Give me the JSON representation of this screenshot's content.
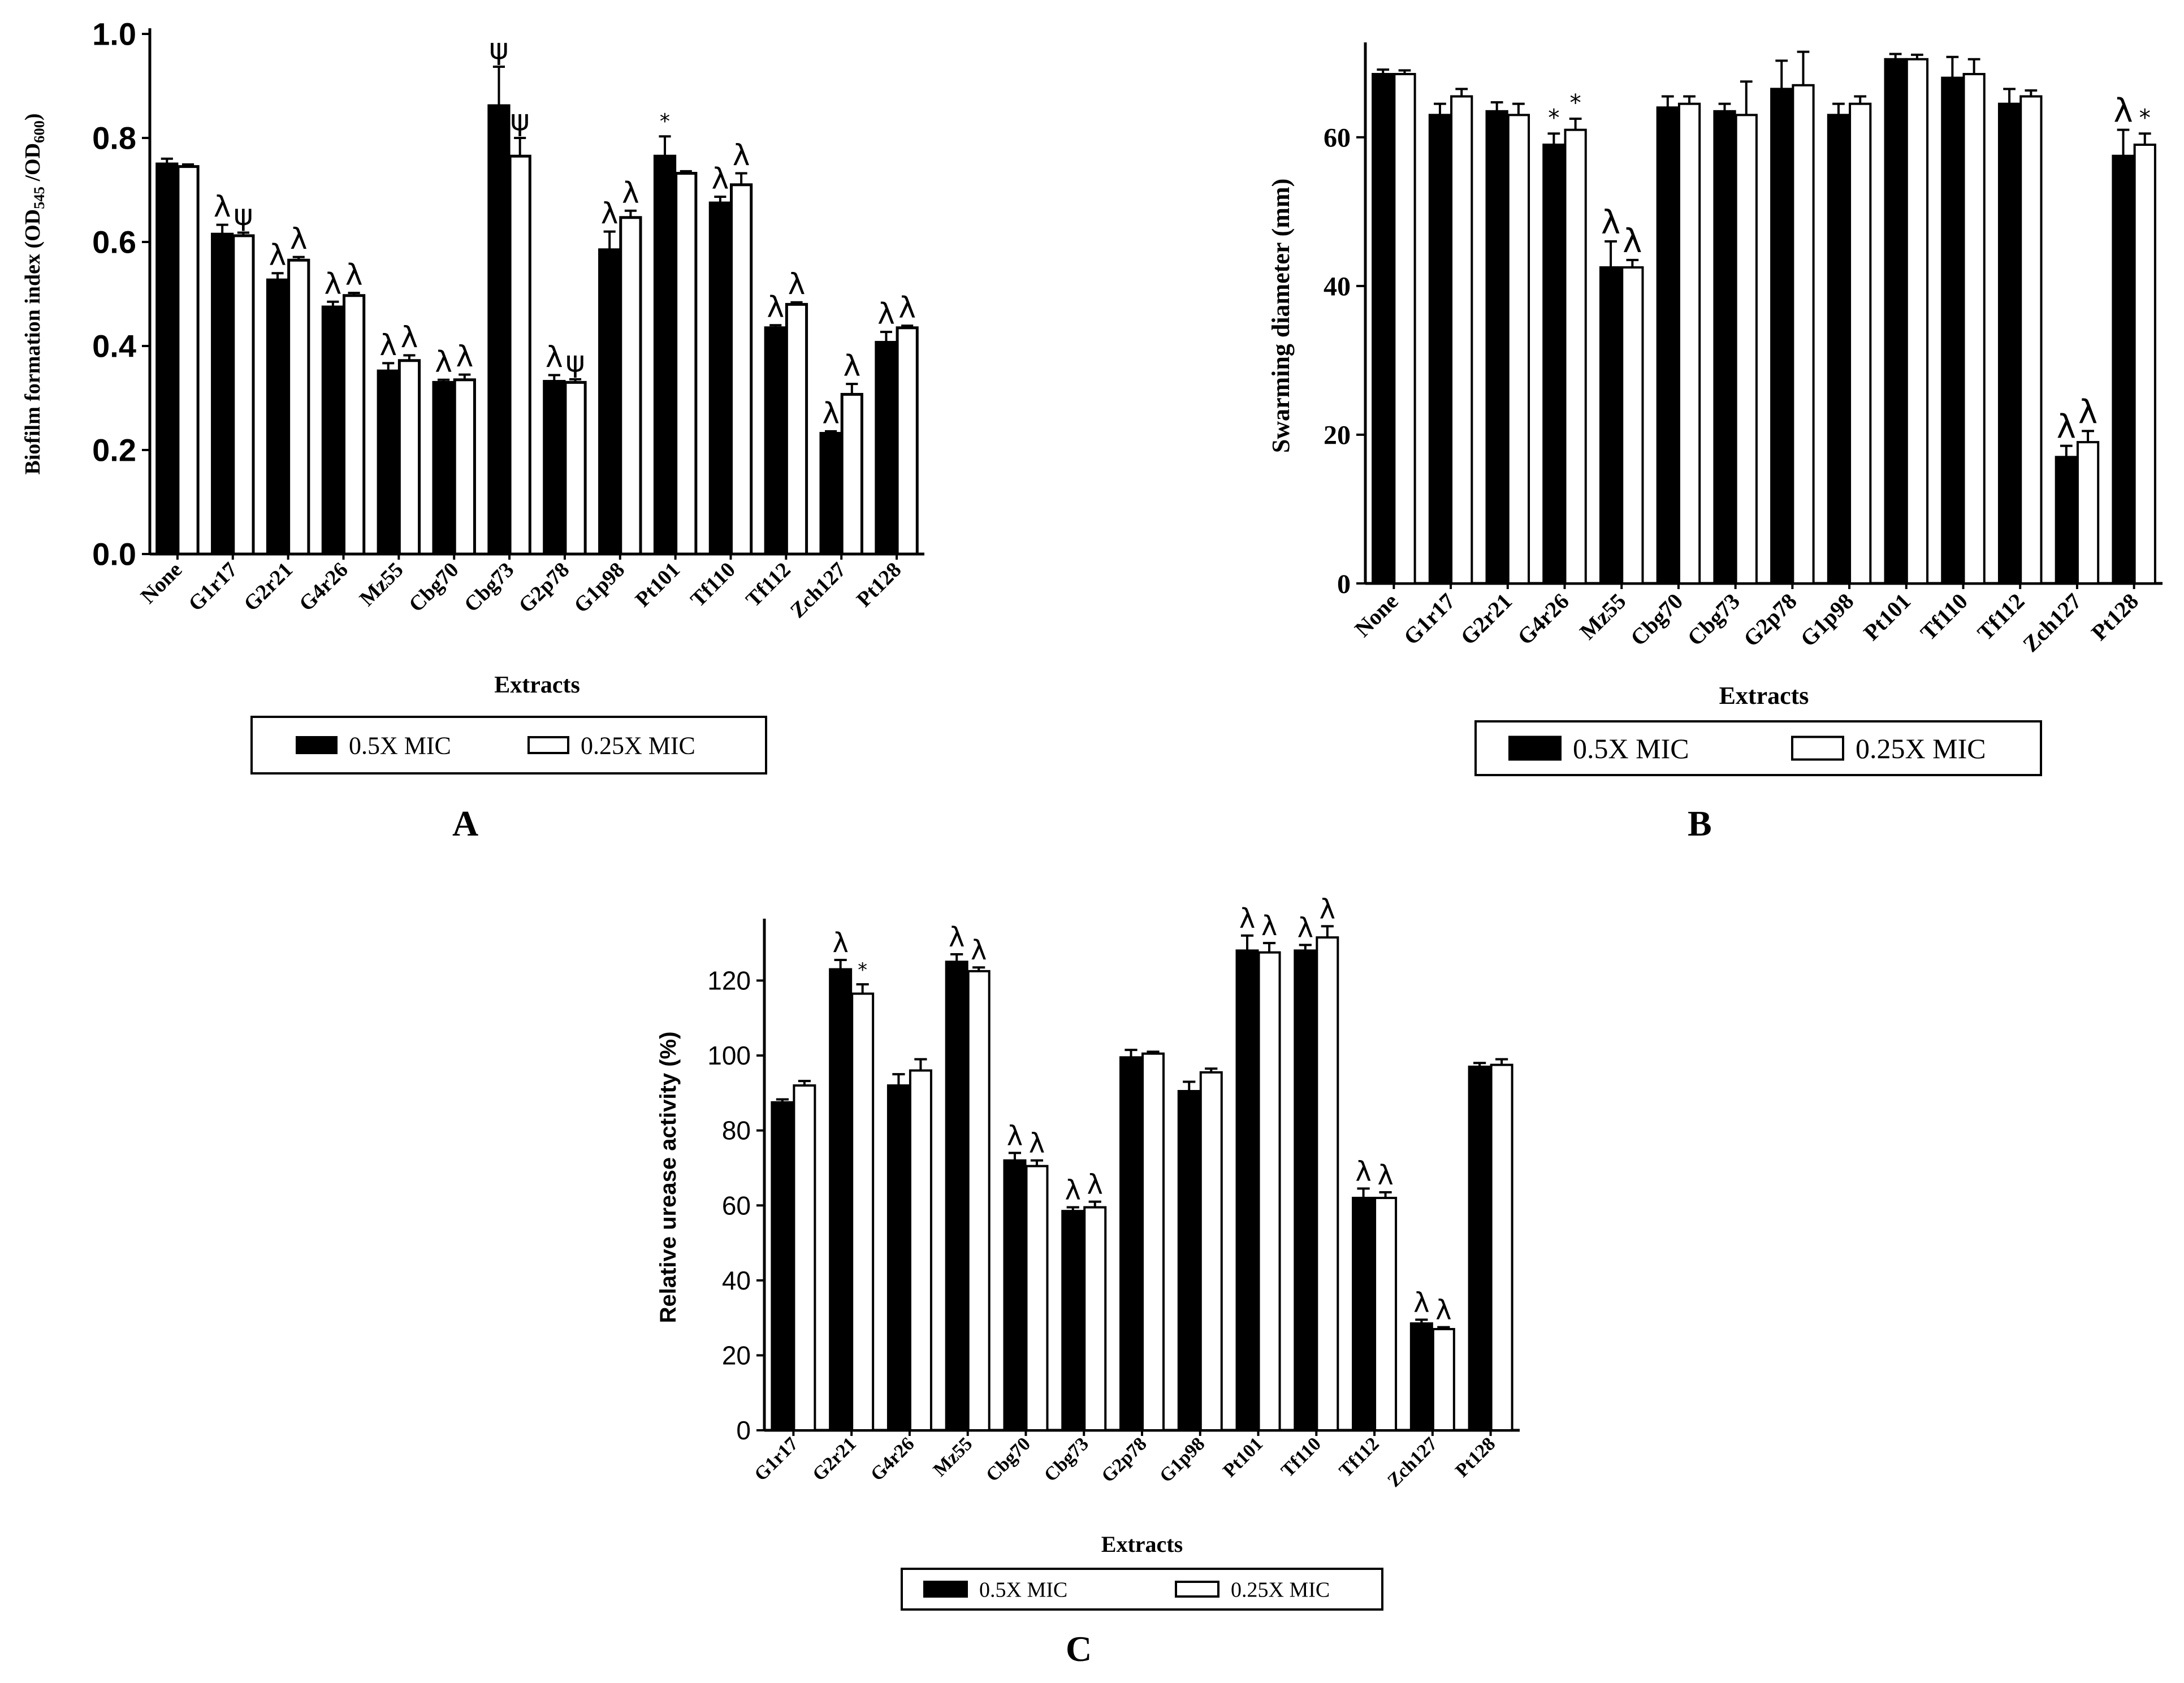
{
  "colors": {
    "filled": "#000000",
    "open": "#ffffff",
    "stroke": "#000000"
  },
  "chart_data": [
    {
      "panel": "A",
      "type": "bar",
      "ylabel": "Biofilm formation index (OD545 /OD600)",
      "ylabel_parts": [
        "Biofilm formation index (OD",
        "545",
        " /OD",
        "600",
        ")"
      ],
      "xlabel": "Extracts",
      "ylim": [
        0,
        1.0
      ],
      "yticks": [
        0.0,
        0.2,
        0.4,
        0.6,
        0.8,
        1.0
      ],
      "ytick_labels": [
        "0.0",
        "0.2",
        "0.4",
        "0.6",
        "0.8",
        "1.0"
      ],
      "categories": [
        "None",
        "G1r17",
        "G2r21",
        "G4r26",
        "Mz55",
        "Cbg70",
        "Cbg73",
        "G2p78",
        "G1p98",
        "Pt101",
        "Tf110",
        "Tf112",
        "Zch127",
        "Pt128"
      ],
      "series": [
        {
          "name": "0.5X MIC",
          "style": "filled",
          "values": [
            0.75,
            0.615,
            0.527,
            0.475,
            0.352,
            0.33,
            0.862,
            0.332,
            0.585,
            0.765,
            0.675,
            0.435,
            0.232,
            0.407
          ],
          "errors": [
            0.01,
            0.018,
            0.013,
            0.01,
            0.015,
            0.005,
            0.075,
            0.012,
            0.035,
            0.038,
            0.012,
            0.005,
            0.004,
            0.02
          ],
          "annotations": [
            "",
            "λ",
            "λ",
            "λ",
            "λ",
            "λ",
            "ψ",
            "λ",
            "λ",
            "*",
            "λ",
            "λ",
            "λ",
            "λ"
          ]
        },
        {
          "name": "0.25X MIC",
          "style": "open",
          "values": [
            0.745,
            0.612,
            0.565,
            0.497,
            0.372,
            0.335,
            0.765,
            0.33,
            0.647,
            0.732,
            0.71,
            0.48,
            0.307,
            0.435
          ],
          "errors": [
            0.004,
            0.006,
            0.006,
            0.005,
            0.01,
            0.01,
            0.035,
            0.006,
            0.013,
            0.004,
            0.022,
            0.004,
            0.02,
            0.004
          ],
          "annotations": [
            "",
            "ψ",
            "λ",
            "λ",
            "λ",
            "λ",
            "ψ",
            "ψ",
            "λ",
            "",
            "λ",
            "λ",
            "λ",
            "λ"
          ]
        }
      ],
      "legend": {
        "position": "bottom",
        "entries": [
          "0.5X MIC",
          "0.25X MIC"
        ]
      },
      "panel_label": "A"
    },
    {
      "panel": "B",
      "type": "bar",
      "ylabel": "Swarming diameter (mm)",
      "xlabel": "Extracts",
      "ylim": [
        0,
        72
      ],
      "yticks": [
        0,
        20,
        40,
        60
      ],
      "ytick_labels": [
        "0",
        "20",
        "40",
        "60"
      ],
      "categories": [
        "None",
        "G1r17",
        "G2r21",
        "G4r26",
        "Mz55",
        "Cbg70",
        "Cbg73",
        "G2p78",
        "G1p98",
        "Pt101",
        "Tf110",
        "Tf112",
        "Zch127",
        "Pt128"
      ],
      "series": [
        {
          "name": "0.5X MIC",
          "style": "filled",
          "values": [
            68.5,
            63,
            63.5,
            59,
            42.5,
            64,
            63.5,
            66.5,
            63,
            70.5,
            68,
            64.5,
            17,
            57.5
          ],
          "errors": [
            0.6,
            1.5,
            1.2,
            1.5,
            3.5,
            1.5,
            1.0,
            3.8,
            1.5,
            0.7,
            2.8,
            2.0,
            1.5,
            3.5
          ],
          "annotations": [
            "",
            "",
            "",
            "*",
            "λ",
            "",
            "",
            "",
            "",
            "",
            "",
            "",
            "λ",
            "λ"
          ]
        },
        {
          "name": "0.25X MIC",
          "style": "open",
          "values": [
            68.5,
            65.5,
            63,
            61,
            42.5,
            64.5,
            63,
            67,
            64.5,
            70.5,
            68.5,
            65.5,
            19,
            59
          ],
          "errors": [
            0.5,
            1.0,
            1.5,
            1.5,
            1.0,
            1.0,
            4.5,
            4.5,
            1.0,
            0.6,
            2.0,
            0.8,
            1.5,
            1.5
          ],
          "annotations": [
            "",
            "",
            "",
            "*",
            "λ",
            "",
            "",
            "",
            "",
            "",
            "",
            "",
            "λ",
            "*"
          ]
        }
      ],
      "legend": {
        "position": "bottom",
        "entries": [
          "0.5X MIC",
          "0.25X MIC"
        ]
      },
      "panel_label": "B"
    },
    {
      "panel": "C",
      "type": "bar",
      "ylabel": "Relative urease activity (%)",
      "xlabel": "Extracts",
      "ylim": [
        0,
        135
      ],
      "yticks": [
        0,
        20,
        40,
        60,
        80,
        100,
        120
      ],
      "ytick_labels": [
        "0",
        "20",
        "40",
        "60",
        "80",
        "100",
        "120"
      ],
      "categories": [
        "G1r17",
        "G2r21",
        "G4r26",
        "Mz55",
        "Cbg70",
        "Cbg73",
        "G2p78",
        "G1p98",
        "Pt101",
        "Tf110",
        "Tf112",
        "Zch127",
        "Pt128"
      ],
      "series": [
        {
          "name": "0.5X MIC",
          "style": "filled",
          "values": [
            87.5,
            123,
            92,
            125,
            72,
            58.5,
            99.5,
            90.5,
            128,
            128,
            62,
            28.5,
            97
          ],
          "errors": [
            0.8,
            2.5,
            3.0,
            2.0,
            2.0,
            1.0,
            2.0,
            2.5,
            4.0,
            1.5,
            2.5,
            1.0,
            1.0
          ],
          "annotations": [
            "",
            "λ",
            "",
            "λ",
            "λ",
            "λ",
            "",
            "",
            "λ",
            "λ",
            "λ",
            "λ",
            ""
          ]
        },
        {
          "name": "0.25X MIC",
          "style": "open",
          "values": [
            92,
            116.5,
            96,
            122.5,
            70.5,
            59.5,
            100.5,
            95.5,
            127.5,
            131.5,
            62,
            27,
            97.5
          ],
          "errors": [
            1.2,
            2.5,
            3.0,
            1.0,
            1.5,
            1.5,
            0.5,
            1.0,
            2.5,
            3.0,
            1.5,
            0.5,
            1.5
          ],
          "annotations": [
            "",
            "*",
            "",
            "λ",
            "λ",
            "λ",
            "",
            "",
            "λ",
            "λ",
            "λ",
            "λ",
            ""
          ]
        }
      ],
      "legend": {
        "position": "bottom",
        "entries": [
          "0.5X MIC",
          "0.25X MIC"
        ]
      },
      "panel_label": "C"
    }
  ]
}
